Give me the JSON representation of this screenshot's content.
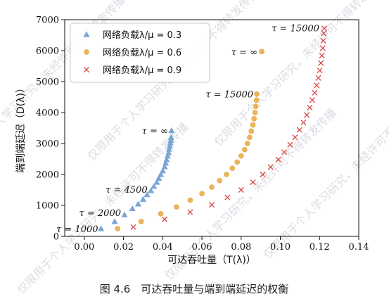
{
  "chart_data": {
    "type": "scatter",
    "xlabel": "可达吞吐量（T(λ)）",
    "ylabel": "端到端延迟（D(λ)）",
    "xlim": [
      -0.01,
      0.14
    ],
    "ylim": [
      0,
      7000
    ],
    "xticks": [
      "0.00",
      "0.02",
      "0.04",
      "0.06",
      "0.08",
      "0.10",
      "0.12",
      "0.14"
    ],
    "yticks": [
      "0",
      "1000",
      "2000",
      "3000",
      "4000",
      "5000",
      "6000",
      "7000"
    ],
    "legend_position": "top-left",
    "grid": false,
    "series": [
      {
        "name": "网络负载λ/μ = 0.3",
        "marker": "triangle",
        "color": "#7aa6d6",
        "points": [
          [
            0.0085,
            250
          ],
          [
            0.0155,
            480
          ],
          [
            0.0205,
            700
          ],
          [
            0.0245,
            900
          ],
          [
            0.0275,
            1050
          ],
          [
            0.03,
            1200
          ],
          [
            0.032,
            1350
          ],
          [
            0.034,
            1480
          ],
          [
            0.0355,
            1620
          ],
          [
            0.037,
            1750
          ],
          [
            0.038,
            1880
          ],
          [
            0.039,
            2000
          ],
          [
            0.04,
            2120
          ],
          [
            0.041,
            2250
          ],
          [
            0.0415,
            2370
          ],
          [
            0.042,
            2480
          ],
          [
            0.0425,
            2600
          ],
          [
            0.043,
            2710
          ],
          [
            0.0433,
            2820
          ],
          [
            0.0436,
            2920
          ],
          [
            0.0439,
            3020
          ],
          [
            0.0441,
            3110
          ],
          [
            0.0443,
            3200
          ],
          [
            0.0445,
            3420
          ]
        ]
      },
      {
        "name": "网络负载λ/μ = 0.6",
        "marker": "circle",
        "color": "#e9b45a",
        "points": [
          [
            0.017,
            250
          ],
          [
            0.029,
            480
          ],
          [
            0.039,
            730
          ],
          [
            0.047,
            950
          ],
          [
            0.054,
            1170
          ],
          [
            0.06,
            1380
          ],
          [
            0.065,
            1590
          ],
          [
            0.069,
            1800
          ],
          [
            0.0725,
            2000
          ],
          [
            0.0755,
            2200
          ],
          [
            0.078,
            2400
          ],
          [
            0.08,
            2600
          ],
          [
            0.0818,
            2800
          ],
          [
            0.0832,
            3000
          ],
          [
            0.0843,
            3200
          ],
          [
            0.0852,
            3400
          ],
          [
            0.086,
            3600
          ],
          [
            0.0866,
            3800
          ],
          [
            0.0871,
            4000
          ],
          [
            0.0875,
            4200
          ],
          [
            0.0878,
            4400
          ],
          [
            0.088,
            4600
          ],
          [
            0.0905,
            5970
          ]
        ]
      },
      {
        "name": "网络负载λ/μ = 0.9",
        "marker": "x",
        "color": "#d9534f",
        "points": [
          [
            0.025,
            300
          ],
          [
            0.041,
            550
          ],
          [
            0.054,
            780
          ],
          [
            0.065,
            1020
          ],
          [
            0.073,
            1260
          ],
          [
            0.08,
            1500
          ],
          [
            0.086,
            1750
          ],
          [
            0.091,
            2000
          ],
          [
            0.095,
            2240
          ],
          [
            0.099,
            2480
          ],
          [
            0.102,
            2720
          ],
          [
            0.105,
            2960
          ],
          [
            0.1075,
            3200
          ],
          [
            0.1098,
            3440
          ],
          [
            0.1118,
            3680
          ],
          [
            0.1135,
            3920
          ],
          [
            0.115,
            4160
          ],
          [
            0.1163,
            4400
          ],
          [
            0.1175,
            4640
          ],
          [
            0.1185,
            4880
          ],
          [
            0.1194,
            5120
          ],
          [
            0.1201,
            5360
          ],
          [
            0.1207,
            5600
          ],
          [
            0.1212,
            5840
          ],
          [
            0.1216,
            6080
          ],
          [
            0.1219,
            6320
          ],
          [
            0.1222,
            6560
          ],
          [
            0.1224,
            6720
          ]
        ]
      }
    ],
    "annotations": [
      {
        "text": "τ = 1000",
        "x": 0.0085,
        "y": 250
      },
      {
        "text": "τ = 2000",
        "x": 0.0205,
        "y": 700
      },
      {
        "text": "τ = 4500",
        "x": 0.034,
        "y": 1480
      },
      {
        "text": "τ = ∞",
        "x": 0.0445,
        "y": 3420
      },
      {
        "text": "τ = 15000",
        "x": 0.088,
        "y": 4600
      },
      {
        "text": "τ = ∞",
        "x": 0.0905,
        "y": 5970
      },
      {
        "text": "τ = 15000",
        "x": 0.1224,
        "y": 6720
      }
    ]
  },
  "caption": "图 4.6　可达吞吐量与端到端延迟的权衡",
  "watermark": "仅限用于个人学习研究，未经许可不得转发传播"
}
